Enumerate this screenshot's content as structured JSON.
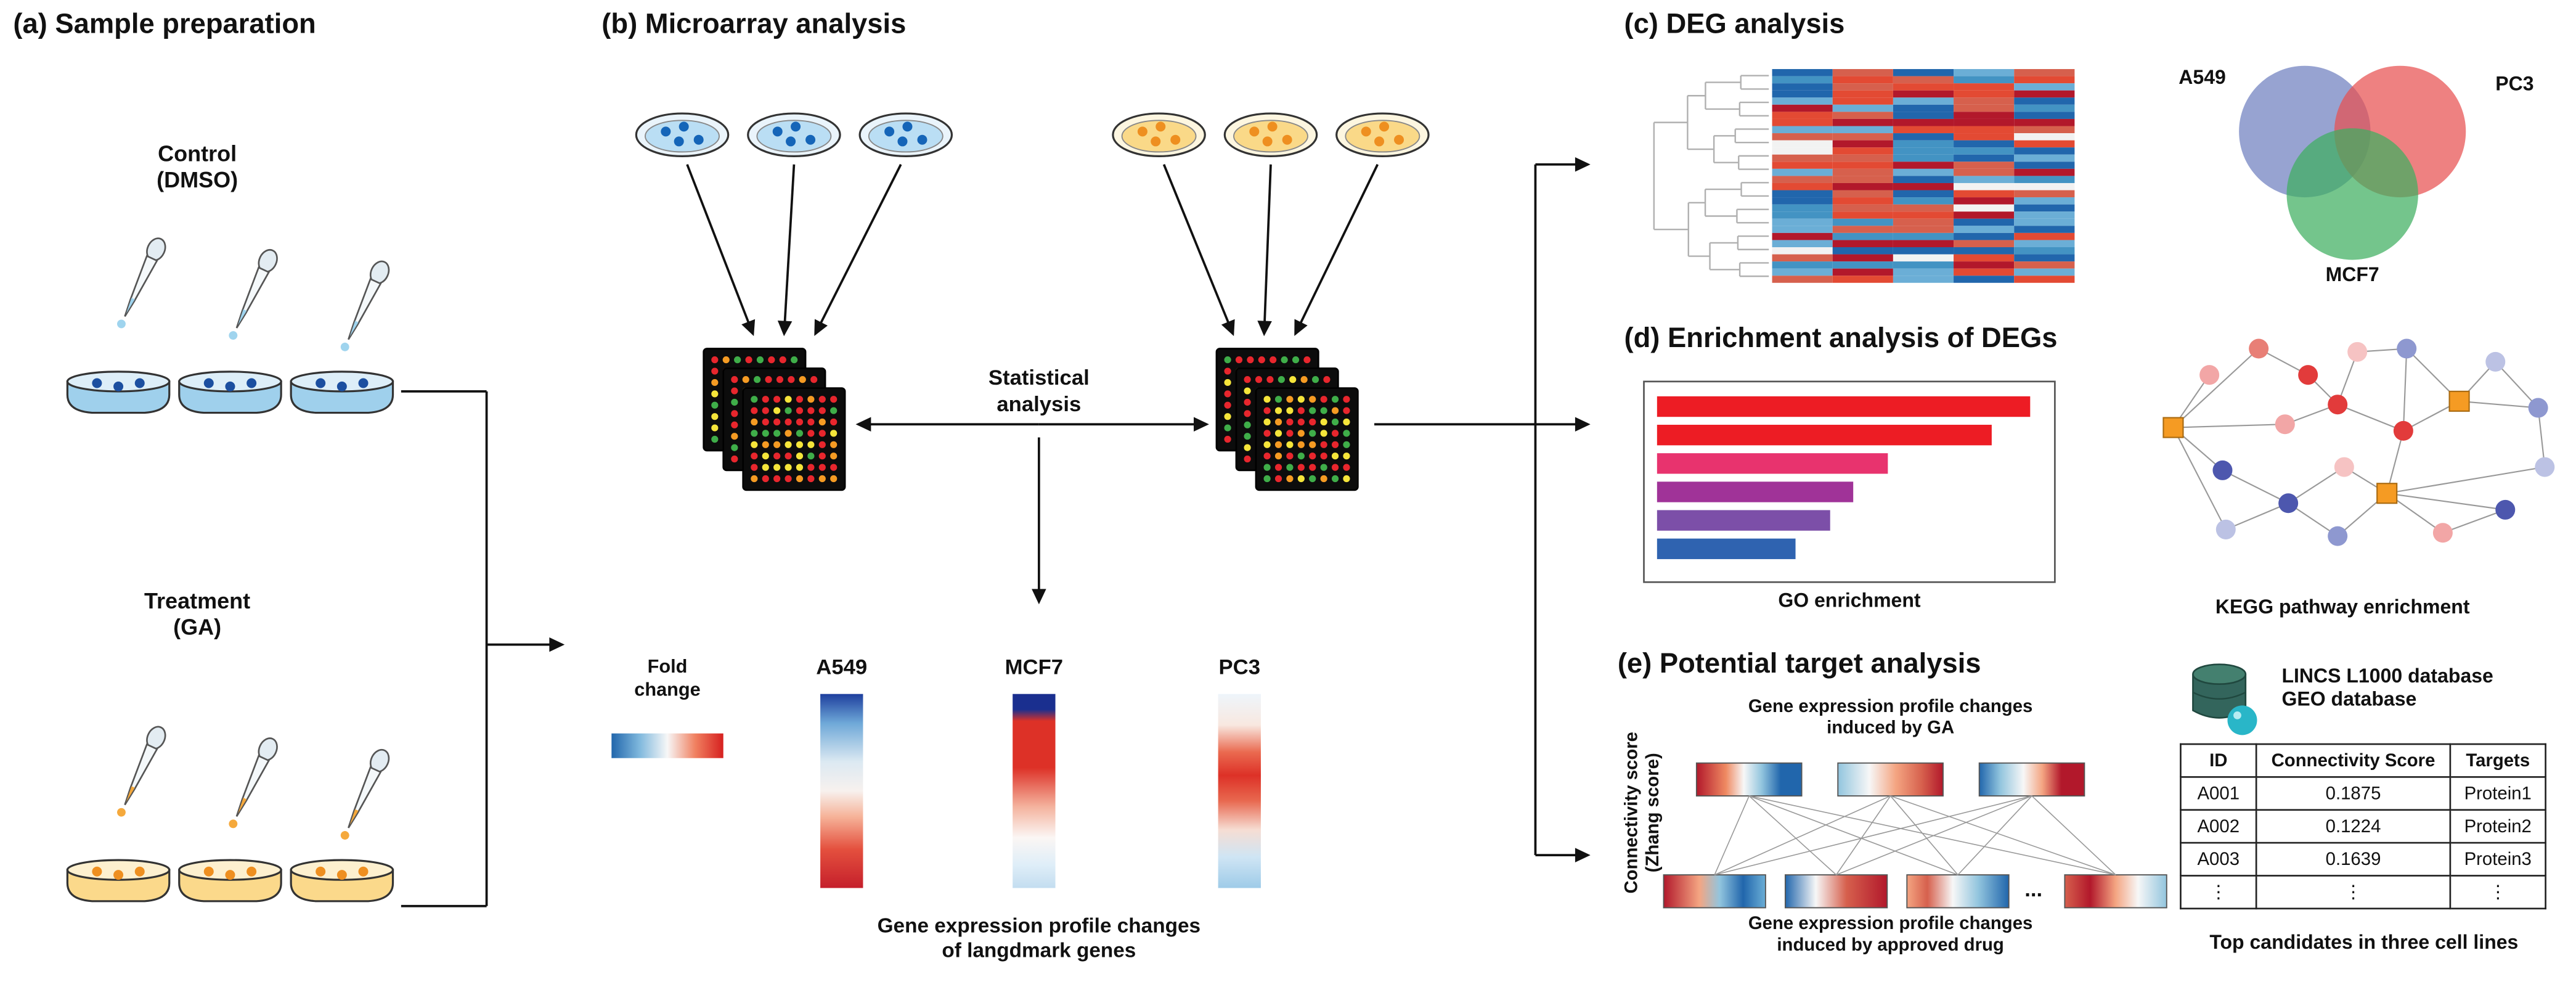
{
  "figure": {
    "panels": {
      "a": {
        "title": "(a) Sample preparation",
        "control_label": "Control\n(DMSO)",
        "treatment_label": "Treatment\n(GA)"
      },
      "b": {
        "title": "(b) Microarray analysis",
        "statistical_label": "Statistical\nanalysis",
        "fold_change_label": "Fold\nchange",
        "cell_lines": [
          "A549",
          "MCF7",
          "PC3"
        ],
        "caption": "Gene expression profile changes\nof langdmark genes"
      },
      "c": {
        "title": "(c) DEG analysis",
        "venn_labels": [
          "A549",
          "PC3",
          "MCF7"
        ],
        "venn_colors": [
          "#6f7fbf",
          "#e85050",
          "#3fae5f"
        ]
      },
      "d": {
        "title": "(d) Enrichment analysis of DEGs",
        "go_caption": "GO enrichment",
        "kegg_caption": "KEGG pathway enrichment",
        "go_bars": {
          "values": [
            0.97,
            0.87,
            0.6,
            0.51,
            0.45,
            0.36
          ],
          "colors": [
            "#ed1c24",
            "#ed1c24",
            "#e8336e",
            "#a03398",
            "#7c4fa8",
            "#2f63b0"
          ]
        }
      },
      "e": {
        "title": "(e) Potential target analysis",
        "y_axis_label": "Connectivity score\n(Zhang score)",
        "top_caption": "Gene expression profile changes\ninduced by GA",
        "bottom_caption": "Gene expression profile changes\ninduced by approved drug",
        "ellipsis": "...",
        "database_label": "LINCS L1000 database\nGEO database",
        "table": {
          "headers": [
            "ID",
            "Connectivity Score",
            "Targets"
          ],
          "rows": [
            [
              "A001",
              "0.1875",
              "Protein1"
            ],
            [
              "A002",
              "0.1224",
              "Protein2"
            ],
            [
              "A003",
              "0.1639",
              "Protein3"
            ],
            [
              "⋮",
              "⋮",
              "⋮"
            ]
          ],
          "caption": "Top candidates in three cell lines"
        }
      }
    }
  }
}
